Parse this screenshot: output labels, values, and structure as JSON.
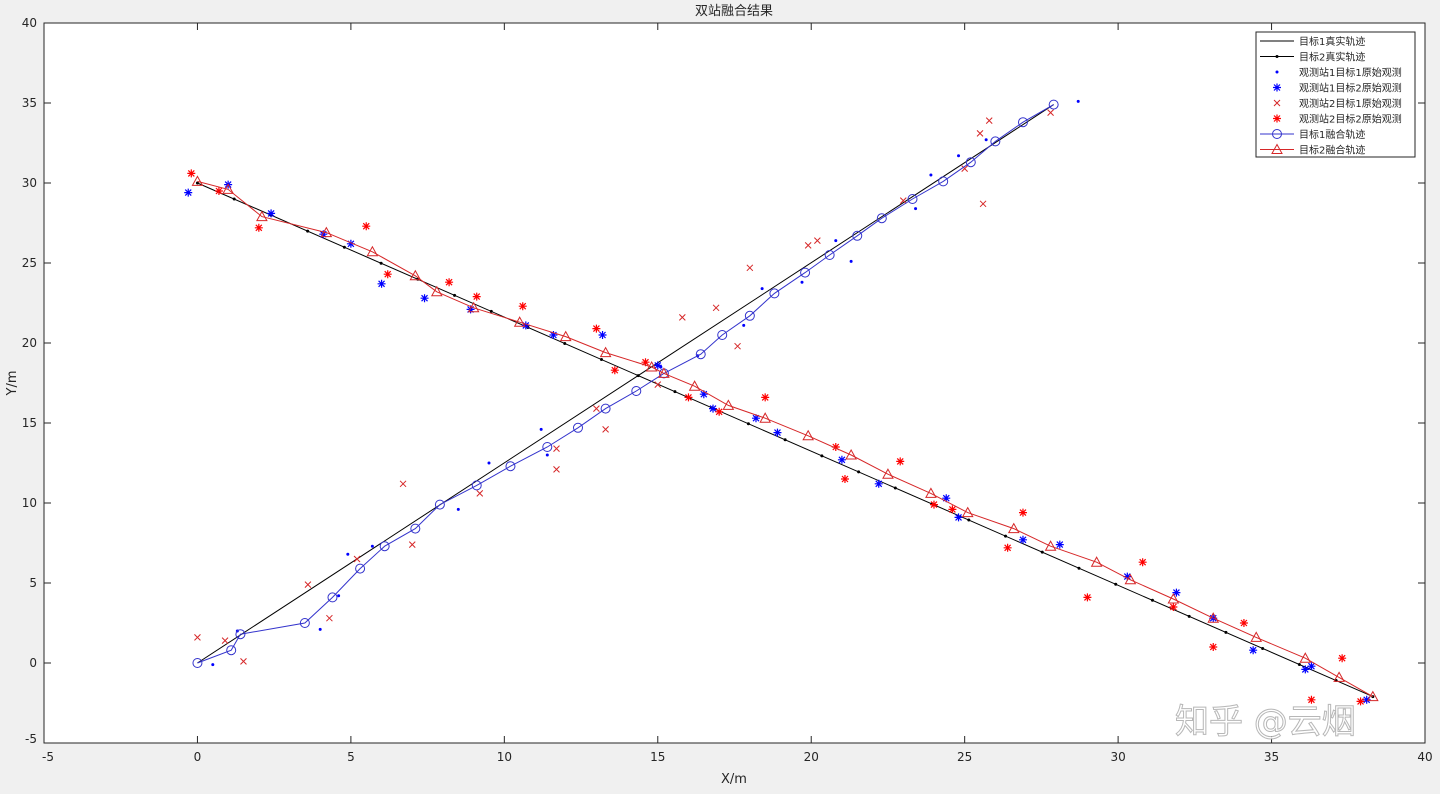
{
  "chart_data": {
    "type": "line",
    "title": "双站融合结果",
    "xlabel": "X/m",
    "ylabel": "Y/m",
    "xlim": [
      -5,
      40
    ],
    "ylim": [
      -5,
      40
    ],
    "xticks": [
      -5,
      0,
      5,
      10,
      15,
      20,
      25,
      30,
      35,
      40
    ],
    "yticks": [
      -5,
      0,
      5,
      10,
      15,
      20,
      25,
      30,
      35,
      40
    ],
    "grid": false,
    "legend_position": "top-right",
    "series": [
      {
        "name": "目标1真实轨迹",
        "style": "line",
        "color": "#000000",
        "points": [
          [
            0,
            0
          ],
          [
            27.9,
            34.9
          ]
        ]
      },
      {
        "name": "目标2真实轨迹",
        "style": "line-dot",
        "color": "#000000",
        "points": [
          [
            0,
            30
          ],
          [
            38.3,
            -2.1
          ]
        ]
      },
      {
        "name": "观测站1目标1原始观测",
        "style": "dot",
        "color": "#0000ff",
        "points": [
          [
            0.5,
            -0.1
          ],
          [
            1.3,
            2.0
          ],
          [
            4.0,
            2.1
          ],
          [
            4.6,
            4.2
          ],
          [
            4.9,
            6.8
          ],
          [
            5.7,
            7.3
          ],
          [
            8.5,
            9.6
          ],
          [
            9.5,
            12.5
          ],
          [
            11.2,
            14.6
          ],
          [
            11.4,
            13.0
          ],
          [
            15.1,
            18.5
          ],
          [
            16.3,
            19.2
          ],
          [
            17.8,
            21.1
          ],
          [
            18.4,
            23.4
          ],
          [
            19.7,
            23.8
          ],
          [
            20.8,
            26.4
          ],
          [
            21.3,
            25.1
          ],
          [
            23.4,
            28.4
          ],
          [
            23.9,
            30.5
          ],
          [
            24.8,
            31.7
          ],
          [
            25.7,
            32.7
          ],
          [
            28.7,
            35.1
          ]
        ]
      },
      {
        "name": "观测站1目标2原始观测",
        "style": "star",
        "color": "#0000ff",
        "points": [
          [
            -0.3,
            29.4
          ],
          [
            1.0,
            29.9
          ],
          [
            2.4,
            28.1
          ],
          [
            4.1,
            26.8
          ],
          [
            5.0,
            26.2
          ],
          [
            6.0,
            23.7
          ],
          [
            7.4,
            22.8
          ],
          [
            8.9,
            22.1
          ],
          [
            10.7,
            21.1
          ],
          [
            11.6,
            20.5
          ],
          [
            13.2,
            20.5
          ],
          [
            15.0,
            18.6
          ],
          [
            16.5,
            16.8
          ],
          [
            16.8,
            15.9
          ],
          [
            18.2,
            15.3
          ],
          [
            18.9,
            14.4
          ],
          [
            21.0,
            12.7
          ],
          [
            22.2,
            11.2
          ],
          [
            24.4,
            10.3
          ],
          [
            24.8,
            9.1
          ],
          [
            26.9,
            7.7
          ],
          [
            28.1,
            7.4
          ],
          [
            30.3,
            5.4
          ],
          [
            31.9,
            4.4
          ],
          [
            33.1,
            2.8
          ],
          [
            34.4,
            0.8
          ],
          [
            36.1,
            -0.4
          ],
          [
            36.3,
            -0.2
          ],
          [
            38.1,
            -2.3
          ]
        ]
      },
      {
        "name": "观测站2目标1原始观测",
        "style": "x",
        "color": "#d62728",
        "points": [
          [
            0.0,
            1.6
          ],
          [
            0.9,
            1.4
          ],
          [
            1.5,
            0.1
          ],
          [
            3.6,
            4.9
          ],
          [
            4.3,
            2.8
          ],
          [
            5.2,
            6.5
          ],
          [
            6.7,
            11.2
          ],
          [
            7.0,
            7.4
          ],
          [
            9.2,
            10.6
          ],
          [
            11.7,
            13.4
          ],
          [
            11.7,
            12.1
          ],
          [
            13.0,
            15.9
          ],
          [
            13.3,
            14.6
          ],
          [
            15.0,
            17.4
          ],
          [
            15.8,
            21.6
          ],
          [
            16.9,
            22.2
          ],
          [
            17.6,
            19.8
          ],
          [
            18.0,
            24.7
          ],
          [
            19.9,
            26.1
          ],
          [
            20.2,
            26.4
          ],
          [
            23.0,
            28.9
          ],
          [
            25.0,
            30.9
          ],
          [
            25.5,
            33.1
          ],
          [
            25.6,
            28.7
          ],
          [
            25.8,
            33.9
          ],
          [
            27.8,
            34.4
          ]
        ]
      },
      {
        "name": "观测站2目标2原始观测",
        "style": "star",
        "color": "#ff0000",
        "points": [
          [
            -0.2,
            30.6
          ],
          [
            0.7,
            29.5
          ],
          [
            2.0,
            27.2
          ],
          [
            5.5,
            27.3
          ],
          [
            6.2,
            24.3
          ],
          [
            8.2,
            23.8
          ],
          [
            9.1,
            22.9
          ],
          [
            10.6,
            22.3
          ],
          [
            13.0,
            20.9
          ],
          [
            13.6,
            18.3
          ],
          [
            14.6,
            18.8
          ],
          [
            16.0,
            16.6
          ],
          [
            17.0,
            15.7
          ],
          [
            18.5,
            16.6
          ],
          [
            20.8,
            13.5
          ],
          [
            21.1,
            11.5
          ],
          [
            22.9,
            12.6
          ],
          [
            24.0,
            9.9
          ],
          [
            24.6,
            9.6
          ],
          [
            26.4,
            7.2
          ],
          [
            26.9,
            9.4
          ],
          [
            29.0,
            4.1
          ],
          [
            30.8,
            6.3
          ],
          [
            31.8,
            3.5
          ],
          [
            33.1,
            1.0
          ],
          [
            34.1,
            2.5
          ],
          [
            36.3,
            -2.3
          ],
          [
            37.3,
            0.3
          ],
          [
            37.9,
            -2.4
          ]
        ]
      },
      {
        "name": "目标1融合轨迹",
        "style": "line-circle",
        "color": "#3333cc",
        "points": [
          [
            0,
            0
          ],
          [
            1.1,
            0.8
          ],
          [
            1.4,
            1.8
          ],
          [
            3.5,
            2.5
          ],
          [
            4.4,
            4.1
          ],
          [
            5.3,
            5.9
          ],
          [
            6.1,
            7.3
          ],
          [
            7.1,
            8.4
          ],
          [
            7.9,
            9.9
          ],
          [
            9.1,
            11.1
          ],
          [
            10.2,
            12.3
          ],
          [
            11.4,
            13.5
          ],
          [
            12.4,
            14.7
          ],
          [
            13.3,
            15.9
          ],
          [
            14.3,
            17.0
          ],
          [
            15.2,
            18.1
          ],
          [
            16.4,
            19.3
          ],
          [
            17.1,
            20.5
          ],
          [
            18.0,
            21.7
          ],
          [
            18.8,
            23.1
          ],
          [
            19.8,
            24.4
          ],
          [
            20.6,
            25.5
          ],
          [
            21.5,
            26.7
          ],
          [
            22.3,
            27.8
          ],
          [
            23.3,
            29.0
          ],
          [
            24.3,
            30.1
          ],
          [
            25.2,
            31.3
          ],
          [
            26.0,
            32.6
          ],
          [
            26.9,
            33.8
          ],
          [
            27.9,
            34.9
          ]
        ]
      },
      {
        "name": "目标2融合轨迹",
        "style": "line-triangle",
        "color": "#d62728",
        "points": [
          [
            0.0,
            30.1
          ],
          [
            1.0,
            29.6
          ],
          [
            2.1,
            27.9
          ],
          [
            4.2,
            26.9
          ],
          [
            5.7,
            25.7
          ],
          [
            7.1,
            24.2
          ],
          [
            7.8,
            23.2
          ],
          [
            9.0,
            22.2
          ],
          [
            10.5,
            21.3
          ],
          [
            12.0,
            20.4
          ],
          [
            13.3,
            19.4
          ],
          [
            14.8,
            18.5
          ],
          [
            15.2,
            18.1
          ],
          [
            16.2,
            17.3
          ],
          [
            17.3,
            16.1
          ],
          [
            18.5,
            15.3
          ],
          [
            19.9,
            14.2
          ],
          [
            21.3,
            13.0
          ],
          [
            22.5,
            11.8
          ],
          [
            23.9,
            10.6
          ],
          [
            25.1,
            9.4
          ],
          [
            26.6,
            8.4
          ],
          [
            27.8,
            7.3
          ],
          [
            29.3,
            6.3
          ],
          [
            30.4,
            5.2
          ],
          [
            31.8,
            4.0
          ],
          [
            33.1,
            2.8
          ],
          [
            34.5,
            1.6
          ],
          [
            36.1,
            0.3
          ],
          [
            37.2,
            -0.9
          ],
          [
            38.3,
            -2.1
          ]
        ]
      }
    ]
  },
  "watermark": "知乎 @云烟"
}
